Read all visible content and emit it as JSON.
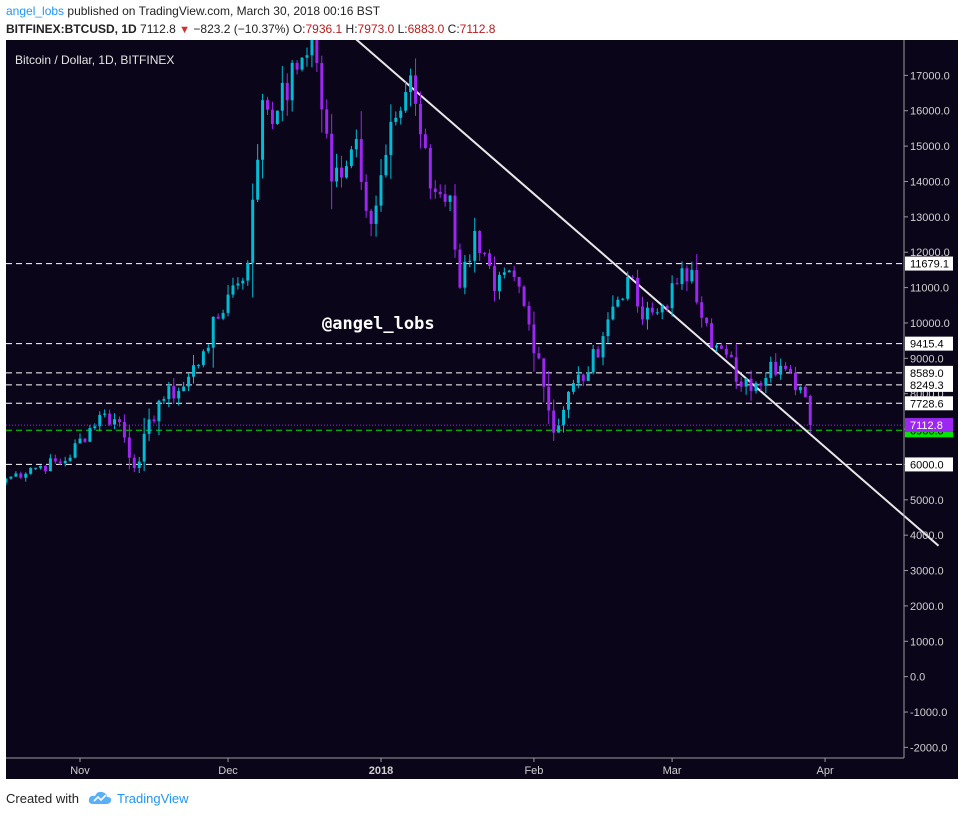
{
  "header": {
    "author": "angel_lobs",
    "published_text": "published on TradingView.com, March 30, 2018 00:16 BST",
    "symbol_line": "BITFINEX:BTCUSD, 1D",
    "last_price": "7112.8",
    "change": "−823.2 (−10.37%)",
    "o_label": "O:",
    "o_value": "7936.1",
    "h_label": "H:",
    "h_value": "7973.0",
    "l_label": "L:",
    "l_value": "6883.0",
    "c_label": "C:",
    "c_value": "7112.8"
  },
  "footer": {
    "created_with": "Created with",
    "brand": "TradingView"
  },
  "colors": {
    "background": "#0b0519",
    "up": "#00bcd4",
    "down": "#9c27f0",
    "level_line": "#ffffff",
    "price_tag": "#9c27f0",
    "support_tag": "#00e600",
    "trendline": "#e8e8e8"
  },
  "chart_data": {
    "type": "candlestick",
    "title": "Bitcoin / Dollar, 1D, BITFINEX",
    "watermark": "@angel_lobs",
    "x_range": [
      "2017-10-17",
      "2018-04-17"
    ],
    "x_ticks": [
      {
        "date": "2017-11-01",
        "label": "Nov"
      },
      {
        "date": "2017-12-01",
        "label": "Dec"
      },
      {
        "date": "2018-01-01",
        "label": "2018"
      },
      {
        "date": "2018-02-01",
        "label": "Feb"
      },
      {
        "date": "2018-03-01",
        "label": "Mar"
      },
      {
        "date": "2018-04-01",
        "label": "Apr"
      }
    ],
    "y_range": [
      -2300,
      18000
    ],
    "y_ticks": [
      -2000,
      -1000,
      0,
      1000,
      2000,
      3000,
      4000,
      5000,
      6000,
      7000,
      8000,
      9000,
      10000,
      11000,
      12000,
      13000,
      14000,
      15000,
      16000,
      17000
    ],
    "y_tick_labels": [
      "-2000.0",
      "-1000.0",
      "0.0",
      "1000.0",
      "2000.0",
      "3000.0",
      "4000.0",
      "5000.0",
      "6000.0",
      "7000.0",
      "8000.0",
      "9000.0",
      "10000.0",
      "11000.0",
      "12000.0",
      "13000.0",
      "14000.0",
      "15000.0",
      "16000.0",
      "17000.0"
    ],
    "horizontal_levels": [
      {
        "value": 11679.1,
        "label": "11679.1",
        "color": "#ffffff"
      },
      {
        "value": 9415.4,
        "label": "9415.4",
        "color": "#ffffff"
      },
      {
        "value": 8589.0,
        "label": "8589.0",
        "color": "#ffffff"
      },
      {
        "value": 8249.3,
        "label": "8249.3",
        "color": "#ffffff"
      },
      {
        "value": 7728.6,
        "label": "7728.6",
        "color": "#ffffff"
      },
      {
        "value": 6966.0,
        "label": "6966.0",
        "color": "#00e600"
      },
      {
        "value": 6000.0,
        "label": "6000.0",
        "color": "#ffffff"
      }
    ],
    "last_price": {
      "value": 7112.8,
      "label": "7112.8"
    },
    "trendline": [
      {
        "date": "2017-12-23",
        "value": 18500
      },
      {
        "date": "2018-04-24",
        "value": 3700
      }
    ],
    "anchors": [
      [
        "2017-10-17",
        5600
      ],
      [
        "2017-10-22",
        5900
      ],
      [
        "2017-10-29",
        6100
      ],
      [
        "2017-11-05",
        7400
      ],
      [
        "2017-11-09",
        7200
      ],
      [
        "2017-11-12",
        5900
      ],
      [
        "2017-11-17",
        7800
      ],
      [
        "2017-11-22",
        8200
      ],
      [
        "2017-11-26",
        9200
      ],
      [
        "2017-12-01",
        10800
      ],
      [
        "2017-12-05",
        11700
      ],
      [
        "2017-12-08",
        16300
      ],
      [
        "2017-12-11",
        16000
      ],
      [
        "2017-12-16",
        17500
      ],
      [
        "2017-12-18",
        18300
      ],
      [
        "2017-12-22",
        14000
      ],
      [
        "2017-12-27",
        15200
      ],
      [
        "2017-12-30",
        12800
      ],
      [
        "2018-01-04",
        15800
      ],
      [
        "2018-01-07",
        17000
      ],
      [
        "2018-01-11",
        13800
      ],
      [
        "2018-01-15",
        13600
      ],
      [
        "2018-01-17",
        11000
      ],
      [
        "2018-01-20",
        12600
      ],
      [
        "2018-01-24",
        10900
      ],
      [
        "2018-01-28",
        11300
      ],
      [
        "2018-02-02",
        9000
      ],
      [
        "2018-02-05",
        6900
      ],
      [
        "2018-02-09",
        8300
      ],
      [
        "2018-02-12",
        8600
      ],
      [
        "2018-02-16",
        10100
      ],
      [
        "2018-02-20",
        11300
      ],
      [
        "2018-02-23",
        10100
      ],
      [
        "2018-02-26",
        10300
      ],
      [
        "2018-03-02",
        11100
      ],
      [
        "2018-03-05",
        11500
      ],
      [
        "2018-03-09",
        9300
      ],
      [
        "2018-03-12",
        9100
      ],
      [
        "2018-03-15",
        8200
      ],
      [
        "2018-03-18",
        8300
      ],
      [
        "2018-03-21",
        8900
      ],
      [
        "2018-03-24",
        8700
      ],
      [
        "2018-03-26",
        8100
      ],
      [
        "2018-03-28",
        7900
      ],
      [
        "2018-03-29",
        7113
      ]
    ],
    "last_candle": {
      "open": 7936.1,
      "high": 7973.0,
      "low": 6883.0,
      "close": 7112.8
    }
  }
}
